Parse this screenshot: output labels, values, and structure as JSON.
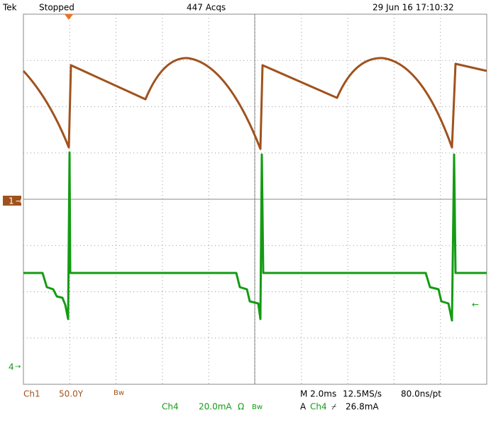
{
  "header": {
    "brand": "Tek",
    "status": "Stopped",
    "acquisitions": "447 Acqs",
    "timestamp": "29 Jun 16 17:10:32"
  },
  "channel1": {
    "name": "Ch1",
    "scale": "50.0Y",
    "bandwidth": "Bw",
    "marker": "1"
  },
  "channel4": {
    "name": "Ch4",
    "scale": "20.0mA",
    "impedance": "Ω",
    "bandwidth": "Bw",
    "marker": "4",
    "offscreen_arrow": "←"
  },
  "timebase": {
    "horizontal": "M 2.0ms",
    "sample_rate": "12.5MS/s",
    "resolution": "80.0ns/pt"
  },
  "trigger": {
    "mode": "A",
    "source": "Ch4",
    "slope": "⌿",
    "level": "26.8mA"
  }
}
